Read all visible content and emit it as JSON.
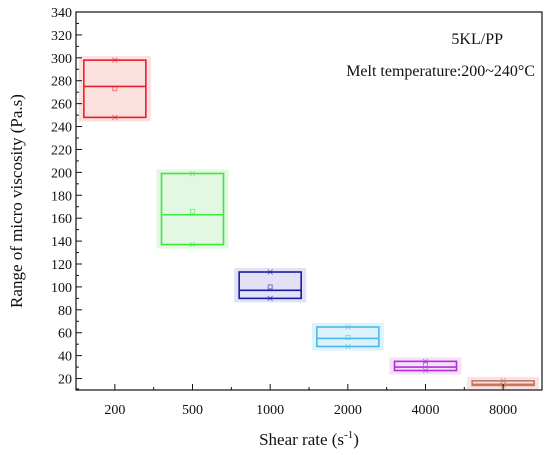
{
  "chart_data": {
    "type": "box",
    "xlabel": "Shear rate (s",
    "xlabel_sup": "-1",
    "xlabel_suffix": ")",
    "ylabel": "Range of micro viscosity (Pa.s)",
    "ylim": [
      10,
      340
    ],
    "yticks": [
      20,
      40,
      60,
      80,
      100,
      120,
      140,
      160,
      180,
      200,
      220,
      240,
      260,
      280,
      300,
      320,
      340
    ],
    "categories": [
      "200",
      "500",
      "1000",
      "2000",
      "4000",
      "8000"
    ],
    "boxes": [
      {
        "category": "200",
        "min": 248,
        "q1": 248,
        "median": 275,
        "mean": 273,
        "q3": 298,
        "max": 298,
        "color": "#e8202a",
        "shadow": "#fbe0e0"
      },
      {
        "category": "500",
        "min": 137,
        "q1": 137,
        "median": 163,
        "mean": 166,
        "q3": 199,
        "max": 199,
        "color": "#3ee83e",
        "shadow": "#e2f8e2"
      },
      {
        "category": "1000",
        "min": 90,
        "q1": 90,
        "median": 97,
        "mean": 100,
        "q3": 113,
        "max": 113,
        "color": "#1a1aa8",
        "shadow": "#e2e2f4"
      },
      {
        "category": "2000",
        "min": 48,
        "q1": 48,
        "median": 55,
        "mean": 56,
        "q3": 65,
        "max": 65,
        "color": "#4db8e8",
        "shadow": "#dcf3fb"
      },
      {
        "category": "4000",
        "min": 27,
        "q1": 27,
        "median": 30,
        "mean": 32,
        "q3": 35,
        "max": 35,
        "color": "#b030d8",
        "shadow": "#f6e0f8"
      },
      {
        "category": "8000",
        "min": 14,
        "q1": 14,
        "median": 15,
        "mean": 16,
        "q3": 18,
        "max": 18,
        "color": "#c47860",
        "shadow": "#fae2e2"
      }
    ],
    "annotations": [
      "5KL/PP",
      "Melt temperature:200~240°C"
    ]
  }
}
